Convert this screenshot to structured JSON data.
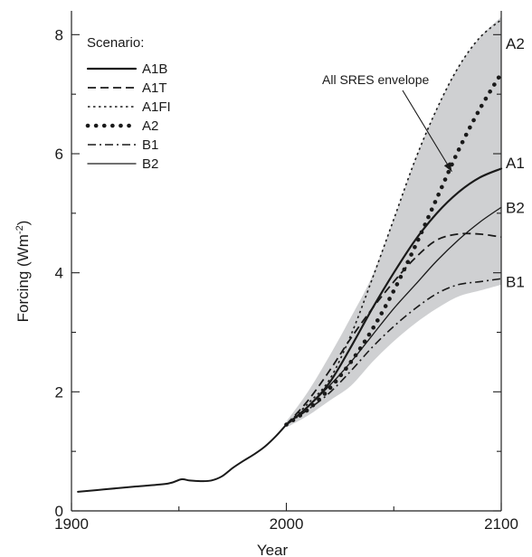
{
  "chart_data": {
    "type": "line",
    "xlabel": "Year",
    "ylabel": "Forcing (Wm-2)",
    "ylabel_parts": {
      "main": "Forcing (Wm",
      "sup": "-2",
      "close": ")"
    },
    "xlim": [
      1900,
      2100
    ],
    "ylim": [
      0,
      8.4
    ],
    "x_ticks": [
      1900,
      2000,
      2100
    ],
    "x_tick_labels": [
      "1900",
      "2000",
      "2100"
    ],
    "y_ticks": [
      0,
      2,
      4,
      6,
      8
    ],
    "y_tick_labels": [
      "0",
      "2",
      "4",
      "6",
      "8"
    ],
    "grid": false,
    "legend": {
      "title": "Scenario:",
      "placement": "top-left",
      "entries": [
        "A1B",
        "A1T",
        "A1FI",
        "A2",
        "B1",
        "B2"
      ]
    },
    "annotation": {
      "text": "All SRES envelope",
      "points_to": [
        2077,
        5.7
      ]
    },
    "end_labels": [
      {
        "text": "A2",
        "y": 7.85
      },
      {
        "text": "A1",
        "y": 5.85
      },
      {
        "text": "B2",
        "y": 5.1
      },
      {
        "text": "B1",
        "y": 3.85
      }
    ],
    "historical": {
      "name": "historical",
      "x": [
        1903,
        1915,
        1930,
        1945,
        1951,
        1955,
        1960,
        1965,
        1970,
        1975,
        1980,
        1985,
        1990,
        1995,
        2000
      ],
      "y": [
        0.32,
        0.36,
        0.41,
        0.46,
        0.53,
        0.51,
        0.5,
        0.51,
        0.58,
        0.72,
        0.84,
        0.95,
        1.08,
        1.25,
        1.45
      ]
    },
    "envelope": {
      "name": "All SRES envelope",
      "x": [
        2000,
        2010,
        2020,
        2030,
        2040,
        2050,
        2060,
        2070,
        2080,
        2090,
        2100
      ],
      "upper": [
        1.5,
        2.0,
        2.6,
        3.25,
        3.95,
        4.9,
        5.9,
        6.75,
        7.45,
        7.95,
        8.3
      ],
      "lower": [
        1.4,
        1.6,
        1.85,
        2.1,
        2.5,
        2.85,
        3.15,
        3.4,
        3.6,
        3.7,
        3.8
      ]
    },
    "series": [
      {
        "name": "A1B",
        "style": "solid-thick",
        "x": [
          2000,
          2010,
          2020,
          2030,
          2040,
          2050,
          2060,
          2070,
          2080,
          2090,
          2100
        ],
        "y": [
          1.45,
          1.75,
          2.15,
          2.75,
          3.4,
          4.0,
          4.55,
          5.0,
          5.35,
          5.6,
          5.75
        ]
      },
      {
        "name": "A1T",
        "style": "dashed",
        "x": [
          2000,
          2010,
          2020,
          2030,
          2040,
          2050,
          2060,
          2070,
          2080,
          2090,
          2100
        ],
        "y": [
          1.45,
          1.85,
          2.35,
          2.9,
          3.4,
          3.85,
          4.25,
          4.55,
          4.65,
          4.65,
          4.6
        ]
      },
      {
        "name": "A1FI",
        "style": "dotted-fine",
        "x": [
          2000,
          2010,
          2020,
          2030,
          2040,
          2050,
          2060,
          2070,
          2080,
          2090,
          2100
        ],
        "y": [
          1.45,
          1.8,
          2.2,
          2.95,
          3.9,
          4.9,
          5.9,
          6.75,
          7.45,
          7.95,
          8.25
        ]
      },
      {
        "name": "A2",
        "style": "dotted-bold",
        "x": [
          2000,
          2010,
          2020,
          2030,
          2040,
          2050,
          2060,
          2070,
          2080,
          2090,
          2100
        ],
        "y": [
          1.45,
          1.7,
          2.05,
          2.5,
          3.05,
          3.7,
          4.45,
          5.25,
          6.05,
          6.75,
          7.35
        ]
      },
      {
        "name": "B1",
        "style": "dashdot",
        "x": [
          2000,
          2010,
          2020,
          2030,
          2040,
          2050,
          2060,
          2070,
          2080,
          2090,
          2100
        ],
        "y": [
          1.45,
          1.7,
          1.98,
          2.35,
          2.75,
          3.1,
          3.4,
          3.65,
          3.8,
          3.85,
          3.9
        ]
      },
      {
        "name": "B2",
        "style": "solid-thin",
        "x": [
          2000,
          2010,
          2020,
          2030,
          2040,
          2050,
          2060,
          2070,
          2080,
          2090,
          2100
        ],
        "y": [
          1.45,
          1.75,
          2.1,
          2.5,
          2.95,
          3.4,
          3.8,
          4.2,
          4.55,
          4.85,
          5.1
        ]
      }
    ],
    "colors": {
      "envelope": "#cfd0d2",
      "line": "#1a1a1a",
      "axis": "#222222"
    }
  }
}
